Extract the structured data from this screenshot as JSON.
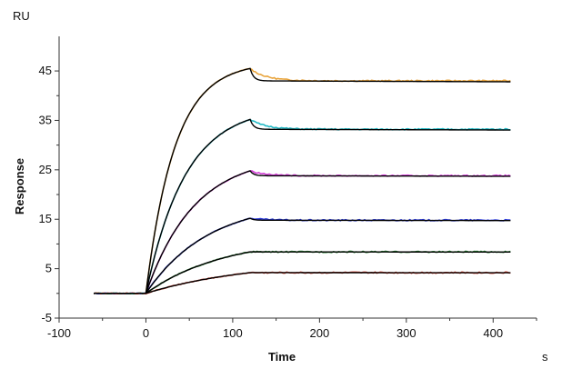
{
  "chart_data": {
    "type": "line",
    "xlabel": "Time",
    "ylabel": "Response",
    "x_unit": "s",
    "y_unit": "RU",
    "xlim": [
      -100,
      450
    ],
    "ylim": [
      -5,
      52
    ],
    "x_ticks": [
      -100,
      0,
      100,
      200,
      300,
      400
    ],
    "y_ticks": [
      -5,
      5,
      15,
      25,
      35,
      45
    ],
    "grid": false,
    "legend": "none",
    "baseline_start": -60,
    "association_end": 120,
    "dissociation_end": 420,
    "fit_color": "#000000",
    "series": [
      {
        "color": "#e8a33a",
        "plateau": 45.5,
        "final": 43.0,
        "k_on": 0.03
      },
      {
        "color": "#22b8c4",
        "plateau": 35.2,
        "final": 33.2,
        "k_on": 0.022
      },
      {
        "color": "#d23bd6",
        "plateau": 24.8,
        "final": 23.8,
        "k_on": 0.018
      },
      {
        "color": "#2b3ad6",
        "plateau": 15.2,
        "final": 14.8,
        "k_on": 0.014
      },
      {
        "color": "#2f8a3a",
        "plateau": 8.4,
        "final": 8.4,
        "k_on": 0.011
      },
      {
        "color": "#d23a2a",
        "plateau": 4.2,
        "final": 4.2,
        "k_on": 0.008
      }
    ]
  }
}
